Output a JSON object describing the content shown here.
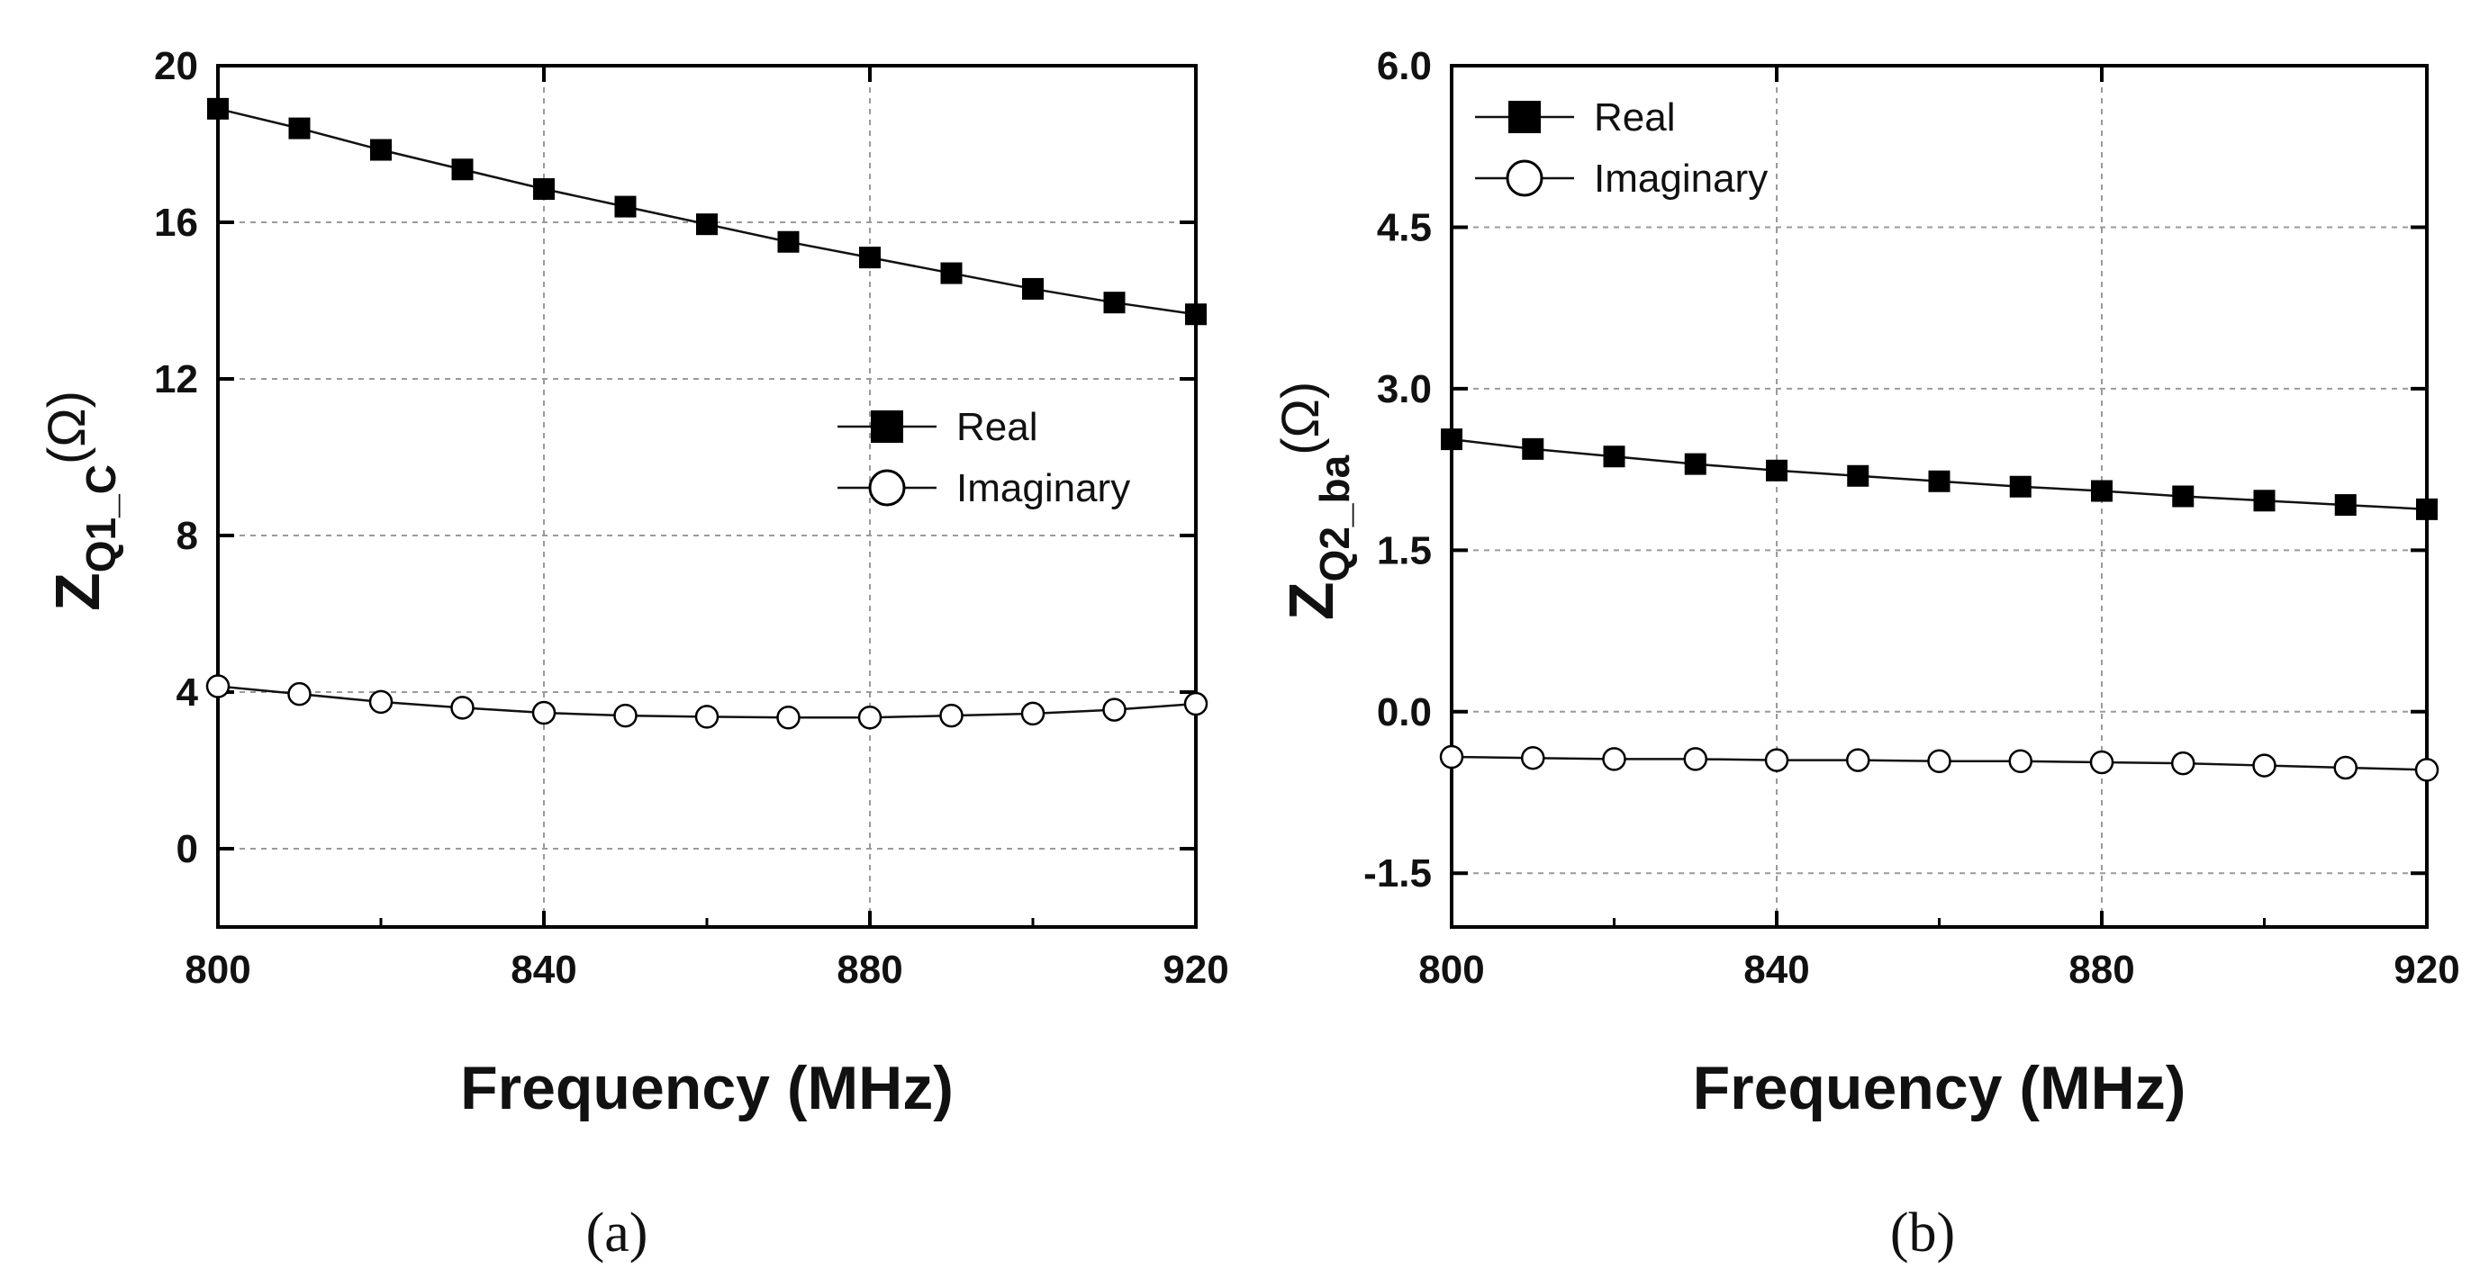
{
  "chart_data": [
    {
      "type": "line",
      "panel_caption": "(a)",
      "xlabel": "Frequency (MHz)",
      "ylabel": {
        "main": "Z",
        "sub": "Q1_C",
        "unit": "(Ω)"
      },
      "xlim": [
        800,
        920
      ],
      "ylim": [
        -2,
        20
      ],
      "xticks": [
        800,
        840,
        880,
        920
      ],
      "xtick_labels": [
        "800",
        "840",
        "880",
        "920"
      ],
      "yticks": [
        0,
        4,
        8,
        12,
        16,
        20
      ],
      "ytick_labels": [
        "0",
        "4",
        "8",
        "12",
        "16",
        "20"
      ],
      "grid": true,
      "legend_position": "center-right",
      "x": [
        800,
        810,
        820,
        830,
        840,
        850,
        860,
        870,
        880,
        890,
        900,
        910,
        920
      ],
      "series": [
        {
          "name": "Real",
          "marker": "filled-square",
          "values": [
            18.9,
            18.4,
            17.85,
            17.35,
            16.85,
            16.4,
            15.95,
            15.5,
            15.1,
            14.7,
            14.3,
            13.95,
            13.65
          ]
        },
        {
          "name": "Imaginary",
          "marker": "open-circle",
          "values": [
            4.15,
            3.95,
            3.75,
            3.6,
            3.47,
            3.4,
            3.37,
            3.35,
            3.35,
            3.4,
            3.45,
            3.55,
            3.7
          ]
        }
      ]
    },
    {
      "type": "line",
      "panel_caption": "(b)",
      "xlabel": "Frequency (MHz)",
      "ylabel": {
        "main": "Z",
        "sub": "Q2_ba",
        "unit": "(Ω)"
      },
      "xlim": [
        800,
        920
      ],
      "ylim": [
        -2,
        6
      ],
      "xticks": [
        800,
        840,
        880,
        920
      ],
      "xtick_labels": [
        "800",
        "840",
        "880",
        "920"
      ],
      "yticks": [
        -1.5,
        0,
        1.5,
        3,
        4.5,
        6
      ],
      "ytick_labels": [
        "-1.5",
        "0.0",
        "1.5",
        "3.0",
        "4.5",
        "6.0"
      ],
      "grid": true,
      "legend_position": "top-left",
      "x": [
        800,
        810,
        820,
        830,
        840,
        850,
        860,
        870,
        880,
        890,
        900,
        910,
        920
      ],
      "series": [
        {
          "name": "Real",
          "marker": "filled-square",
          "values": [
            2.53,
            2.44,
            2.37,
            2.3,
            2.24,
            2.19,
            2.14,
            2.09,
            2.05,
            2.0,
            1.96,
            1.92,
            1.88
          ]
        },
        {
          "name": "Imaginary",
          "marker": "open-circle",
          "values": [
            -0.42,
            -0.43,
            -0.44,
            -0.44,
            -0.45,
            -0.45,
            -0.46,
            -0.46,
            -0.47,
            -0.48,
            -0.5,
            -0.52,
            -0.54
          ]
        }
      ]
    }
  ]
}
